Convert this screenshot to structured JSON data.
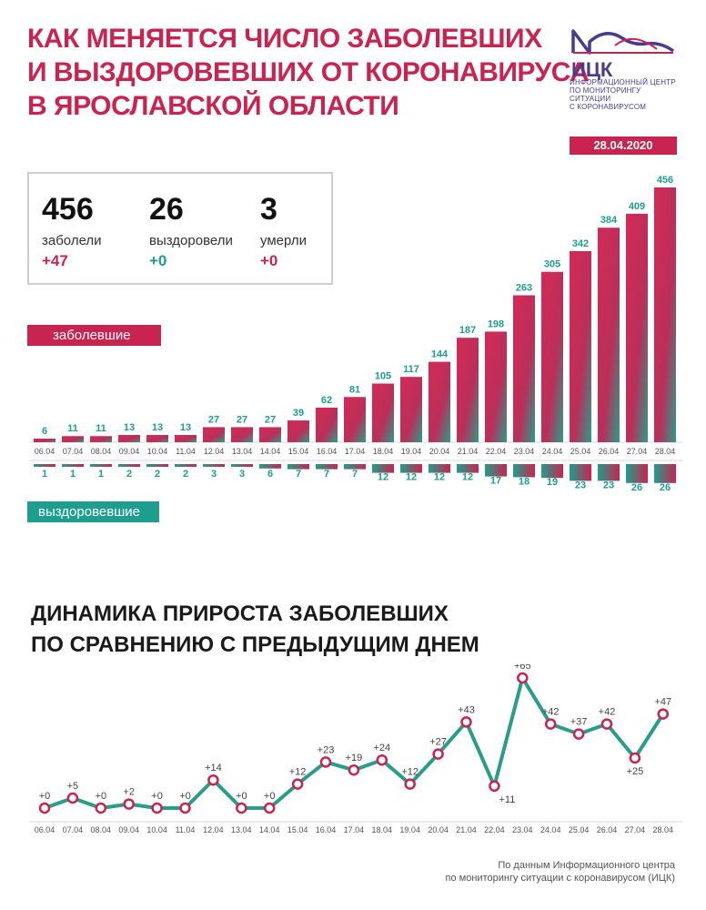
{
  "title_lines": [
    "КАК МЕНЯЕТСЯ ЧИСЛО ЗАБОЛЕВШИХ",
    "И ВЫЗДОРОВЕВШИХ ОТ КОРОНАВИРУСА",
    "В ЯРОСЛАВСКОЙ ОБЛАСТИ"
  ],
  "logo": {
    "name": "ИЦК",
    "lines": [
      "ИНФОРМАЦИОННЫЙ ЦЕНТР",
      "ПО МОНИТОРИНГУ СИТУАЦИИ",
      "С КОРОНАВИРУСОМ"
    ],
    "date": "28.04.2020",
    "colors": {
      "brand": "#4a3b8f",
      "accent": "#c8244f"
    }
  },
  "stats": [
    {
      "value": "456",
      "label": "заболели",
      "delta": "+47",
      "color": "red"
    },
    {
      "value": "26",
      "label": "выздоровели",
      "delta": "+0",
      "color": "teal"
    },
    {
      "value": "3",
      "label": "умерли",
      "delta": "+0",
      "color": "red"
    }
  ],
  "legend": {
    "infected": "заболевшие",
    "recovered": "выздоровевшие"
  },
  "colors": {
    "infected": "#c8244f",
    "recovered": "#1e9e8e",
    "line": "#2a9d8a"
  },
  "subtitle_lines": [
    "ДИНАМИКА ПРИРОСТА ЗАБОЛЕВШИХ",
    "ПО СРАВНЕНИЮ С ПРЕДЫДУЩИМ ДНЕМ"
  ],
  "source_lines": [
    "По данным Информационного центра",
    "по мониторингу ситуации с коронавирусом (ИЦК)"
  ],
  "chart_data": [
    {
      "type": "bar",
      "categories": [
        "06.04",
        "07.04",
        "08.04",
        "09.04",
        "10.04",
        "11.04",
        "12.04",
        "13.04",
        "14.04",
        "15.04",
        "16.04",
        "17.04",
        "18.04",
        "19.04",
        "20.04",
        "21.04",
        "22.04",
        "23.04",
        "24.04",
        "25.04",
        "26.04",
        "27.04",
        "28.04"
      ],
      "series": [
        {
          "name": "заболевшие",
          "values": [
            6,
            11,
            11,
            13,
            13,
            13,
            27,
            27,
            27,
            39,
            62,
            81,
            105,
            117,
            144,
            187,
            198,
            263,
            305,
            342,
            384,
            409,
            456
          ]
        },
        {
          "name": "выздоровевшие",
          "values": [
            1,
            1,
            1,
            2,
            2,
            2,
            3,
            3,
            6,
            7,
            7,
            7,
            12,
            12,
            12,
            12,
            17,
            18,
            19,
            23,
            23,
            26,
            26
          ]
        }
      ]
    },
    {
      "type": "line",
      "categories": [
        "06.04",
        "07.04",
        "08.04",
        "09.04",
        "10.04",
        "11.04",
        "12.04",
        "13.04",
        "14.04",
        "15.04",
        "16.04",
        "17.04",
        "18.04",
        "19.04",
        "20.04",
        "21.04",
        "22.04",
        "23.04",
        "24.04",
        "25.04",
        "26.04",
        "27.04",
        "28.04"
      ],
      "values": [
        0,
        5,
        0,
        2,
        0,
        0,
        14,
        0,
        0,
        12,
        23,
        19,
        24,
        12,
        27,
        43,
        11,
        65,
        42,
        37,
        42,
        25,
        47
      ],
      "labels": [
        "+0",
        "+5",
        "+0",
        "+2",
        "+0",
        "+0",
        "+14",
        "+0",
        "+0",
        "+12",
        "+23",
        "+19",
        "+24",
        "+12",
        "+27",
        "+43",
        "+11",
        "+65",
        "+42",
        "+37",
        "+42",
        "+25",
        "+47"
      ],
      "title": "ДИНАМИКА ПРИРОСТА ЗАБОЛЕВШИХ ПО СРАВНЕНИЮ С ПРЕДЫДУЩИМ ДНЕМ"
    }
  ]
}
